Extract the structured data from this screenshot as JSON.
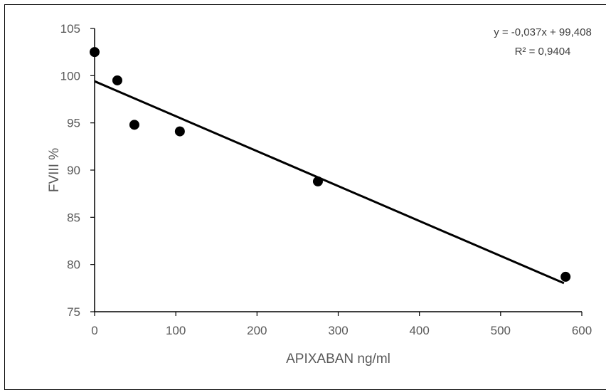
{
  "chart_data": {
    "type": "scatter",
    "title": "",
    "xlabel": "APIXABAN ng/ml",
    "ylabel": "FVIII %",
    "xlim": [
      0,
      600
    ],
    "ylim": [
      75,
      105
    ],
    "x_ticks": [
      0,
      100,
      200,
      300,
      400,
      500,
      600
    ],
    "y_ticks": [
      75,
      80,
      85,
      90,
      95,
      100,
      105
    ],
    "grid": false,
    "legend": "none",
    "series": [
      {
        "color": "#000000",
        "points": [
          {
            "x": 0,
            "y": 102.5
          },
          {
            "x": 28,
            "y": 99.5
          },
          {
            "x": 49,
            "y": 94.8
          },
          {
            "x": 105,
            "y": 94.1
          },
          {
            "x": 275,
            "y": 88.8
          },
          {
            "x": 580,
            "y": 78.7
          }
        ]
      }
    ],
    "trendline": {
      "slope": -0.037,
      "intercept": 99.408,
      "x_range": [
        0,
        578
      ],
      "color": "#000000"
    },
    "annotations": {
      "equation": "y = -0,037x + 99,408",
      "r_squared": "R² = 0,9404"
    }
  }
}
